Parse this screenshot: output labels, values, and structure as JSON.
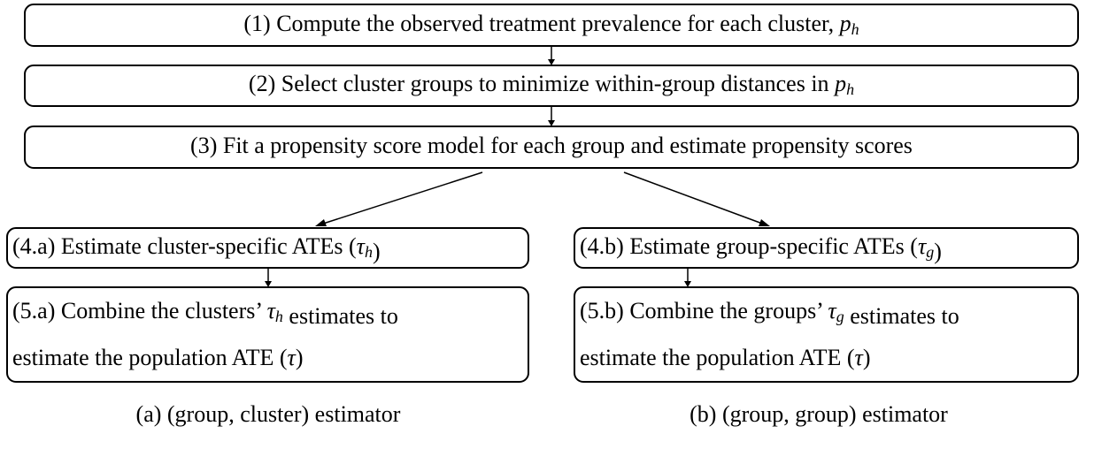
{
  "nodes": [
    {
      "lines": [
        [
          {
            "text": "(1) Compute the observed treatment prevalence for each cluster, "
          },
          {
            "math": "p",
            "sub": "h"
          }
        ]
      ]
    },
    {
      "lines": [
        [
          {
            "text": "(2) Select cluster groups to minimize within-group distances in "
          },
          {
            "math": "p",
            "sub": "h"
          }
        ]
      ]
    },
    {
      "lines": [
        [
          {
            "text": "(3) Fit a propensity score model for each group and estimate propensity scores"
          }
        ]
      ]
    },
    {
      "lines": [
        [
          {
            "text": "(4.a) Estimate cluster-specific ATEs ("
          },
          {
            "math": "τ",
            "sub": "h"
          },
          {
            "text": ")"
          }
        ]
      ]
    },
    {
      "lines": [
        [
          {
            "text": "(4.b) Estimate group-specific ATEs ("
          },
          {
            "math": "τ",
            "sub": "g"
          },
          {
            "text": ")"
          }
        ]
      ]
    },
    {
      "lines": [
        [
          {
            "text": "(5.a) Combine the clusters’ "
          },
          {
            "math": "τ",
            "sub": "h"
          },
          {
            "text": " estimates to"
          }
        ],
        [
          {
            "text": "estimate the population ATE ("
          },
          {
            "math": "τ"
          },
          {
            "text": ")"
          }
        ]
      ]
    },
    {
      "lines": [
        [
          {
            "text": "(5.b) Combine the groups’ "
          },
          {
            "math": "τ",
            "sub": "g"
          },
          {
            "text": " estimates to"
          }
        ],
        [
          {
            "text": "estimate the population ATE ("
          },
          {
            "math": "τ"
          },
          {
            "text": ")"
          }
        ]
      ]
    }
  ],
  "captions": [
    "(a) (group, cluster) estimator",
    "(b) (group, group) estimator"
  ]
}
